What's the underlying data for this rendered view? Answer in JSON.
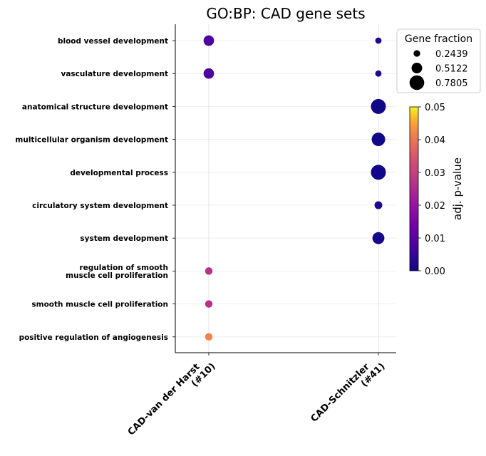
{
  "chart_data": {
    "type": "scatter",
    "title": "GO:BP: CAD gene sets",
    "categories": [
      "CAD-van der Harst\n(#10)",
      "CAD-Schnitzler\n(#41)"
    ],
    "terms": [
      "blood vessel development",
      "vasculature development",
      "anatomical structure development",
      "multicellular organism development",
      "developmental process",
      "circulatory system development",
      "system development",
      "regulation of smooth\nmuscle cell proliferation",
      "smooth muscle cell proliferation",
      "positive regulation of angiogenesis"
    ],
    "points": [
      {
        "term": "blood vessel development",
        "category": "CAD-van der Harst\n(#10)",
        "gene_fraction": 0.5,
        "padj": 0.008
      },
      {
        "term": "vasculature development",
        "category": "CAD-van der Harst\n(#10)",
        "gene_fraction": 0.5,
        "padj": 0.008
      },
      {
        "term": "regulation of smooth\nmuscle cell proliferation",
        "category": "CAD-van der Harst\n(#10)",
        "gene_fraction": 0.3,
        "padj": 0.027
      },
      {
        "term": "smooth muscle cell proliferation",
        "category": "CAD-van der Harst\n(#10)",
        "gene_fraction": 0.3,
        "padj": 0.027
      },
      {
        "term": "positive regulation of angiogenesis",
        "category": "CAD-van der Harst\n(#10)",
        "gene_fraction": 0.3,
        "padj": 0.042
      },
      {
        "term": "blood vessel development",
        "category": "CAD-Schnitzler\n(#41)",
        "gene_fraction": 0.22,
        "padj": 0.003
      },
      {
        "term": "vasculature development",
        "category": "CAD-Schnitzler\n(#41)",
        "gene_fraction": 0.22,
        "padj": 0.003
      },
      {
        "term": "anatomical structure development",
        "category": "CAD-Schnitzler\n(#41)",
        "gene_fraction": 0.8,
        "padj": 0.0005
      },
      {
        "term": "multicellular organism development",
        "category": "CAD-Schnitzler\n(#41)",
        "gene_fraction": 0.7,
        "padj": 0.0005
      },
      {
        "term": "developmental process",
        "category": "CAD-Schnitzler\n(#41)",
        "gene_fraction": 0.8,
        "padj": 0.0005
      },
      {
        "term": "circulatory system development",
        "category": "CAD-Schnitzler\n(#41)",
        "gene_fraction": 0.32,
        "padj": 0.002
      },
      {
        "term": "system development",
        "category": "CAD-Schnitzler\n(#41)",
        "gene_fraction": 0.6,
        "padj": 0.0008
      }
    ],
    "size_legend": {
      "title": "Gene fraction",
      "entries": [
        {
          "label": "0.2439",
          "value": 0.2439
        },
        {
          "label": "0.5122",
          "value": 0.5122
        },
        {
          "label": "0.7805",
          "value": 0.7805
        }
      ],
      "placement": "upper-right-outside"
    },
    "colorbar": {
      "label": "adj. p-value",
      "range": [
        0.0,
        0.05
      ],
      "ticks": [
        "0.00",
        "0.01",
        "0.02",
        "0.03",
        "0.04",
        "0.05"
      ],
      "colormap": "plasma"
    },
    "grid": true
  }
}
